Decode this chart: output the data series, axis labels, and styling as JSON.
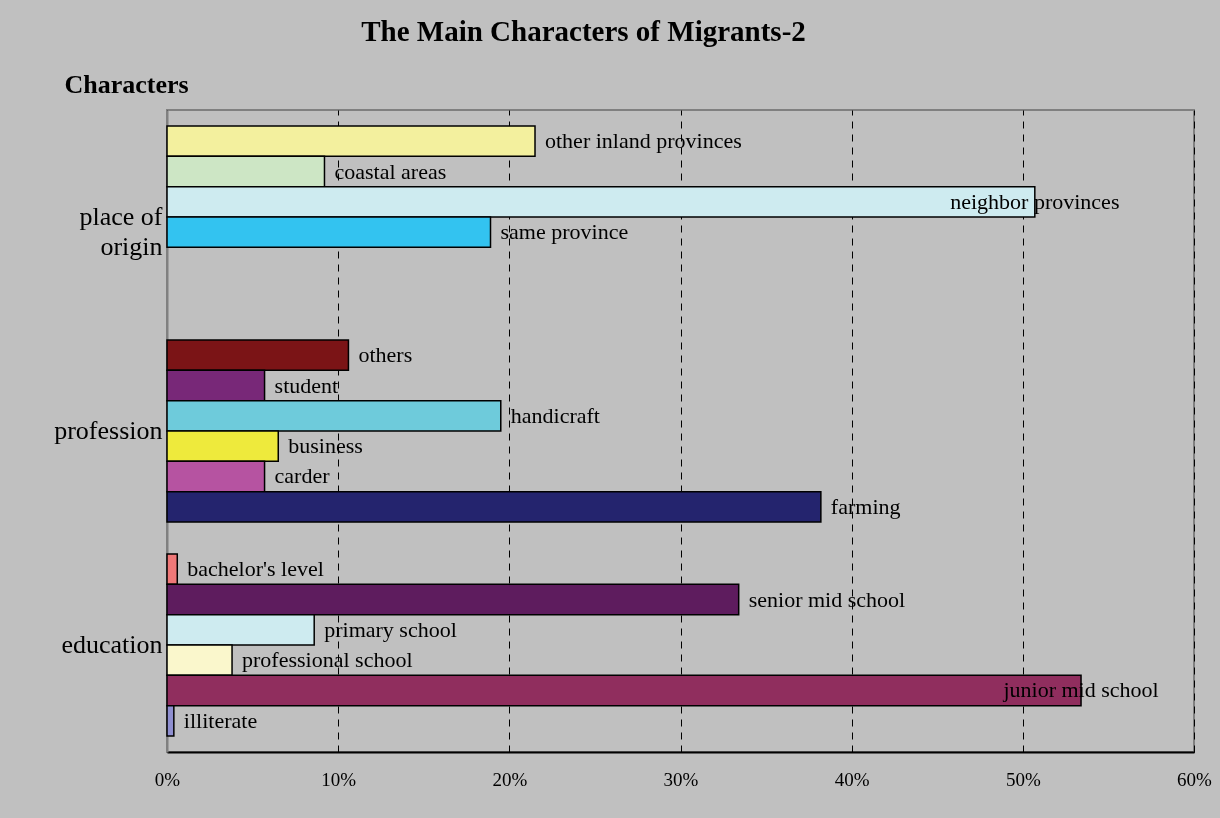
{
  "chart_data": {
    "type": "bar",
    "orientation": "horizontal",
    "title": "The Main Characters of Migrants-2",
    "ylabel": "Characters",
    "categories": [
      "place of origin",
      "profession",
      "education"
    ],
    "series": [
      {
        "name": "other inland provinces",
        "color": "#f3f09e",
        "values": [
          21.5,
          null,
          null
        ]
      },
      {
        "name": "coastal areas",
        "color": "#cde6c5",
        "values": [
          9.2,
          null,
          null
        ]
      },
      {
        "name": "neighbor provinces",
        "color": "#ceebf0",
        "values": [
          50.7,
          null,
          null
        ]
      },
      {
        "name": "same province",
        "color": "#33c3f0",
        "values": [
          18.9,
          null,
          null
        ]
      },
      {
        "name": "others",
        "color": "#7b1416",
        "values": [
          null,
          10.6,
          null
        ]
      },
      {
        "name": "student",
        "color": "#782878",
        "values": [
          null,
          5.7,
          null
        ]
      },
      {
        "name": "handicraft",
        "color": "#6ecbdb",
        "values": [
          null,
          19.5,
          null
        ]
      },
      {
        "name": "business",
        "color": "#eeea3c",
        "values": [
          null,
          6.5,
          null
        ]
      },
      {
        "name": "carder",
        "color": "#b653a1",
        "values": [
          null,
          5.7,
          null
        ]
      },
      {
        "name": "farming",
        "color": "#24246e",
        "values": [
          null,
          38.2,
          null
        ]
      },
      {
        "name": "bachelor's level",
        "color": "#f07878",
        "values": [
          null,
          null,
          0.6
        ]
      },
      {
        "name": "senior mid school",
        "color": "#5e1c5e",
        "values": [
          null,
          null,
          33.4
        ]
      },
      {
        "name": "primary school",
        "color": "#ceebf0",
        "values": [
          null,
          null,
          8.6
        ]
      },
      {
        "name": "professional school",
        "color": "#faf7cc",
        "values": [
          null,
          null,
          3.8
        ]
      },
      {
        "name": "junior mid school",
        "color": "#902e5e",
        "values": [
          null,
          null,
          53.4
        ]
      },
      {
        "name": "illiterate",
        "color": "#8f8fd0",
        "values": [
          null,
          null,
          0.4
        ]
      }
    ],
    "xlim": [
      0,
      60
    ],
    "xticks": [
      {
        "value": 0,
        "label": "0%"
      },
      {
        "value": 10,
        "label": "10%"
      },
      {
        "value": 20,
        "label": "20%"
      },
      {
        "value": 30,
        "label": "30%"
      },
      {
        "value": 40,
        "label": "40%"
      },
      {
        "value": 50,
        "label": "50%"
      },
      {
        "value": 60,
        "label": "60%"
      }
    ],
    "grid": "x"
  }
}
